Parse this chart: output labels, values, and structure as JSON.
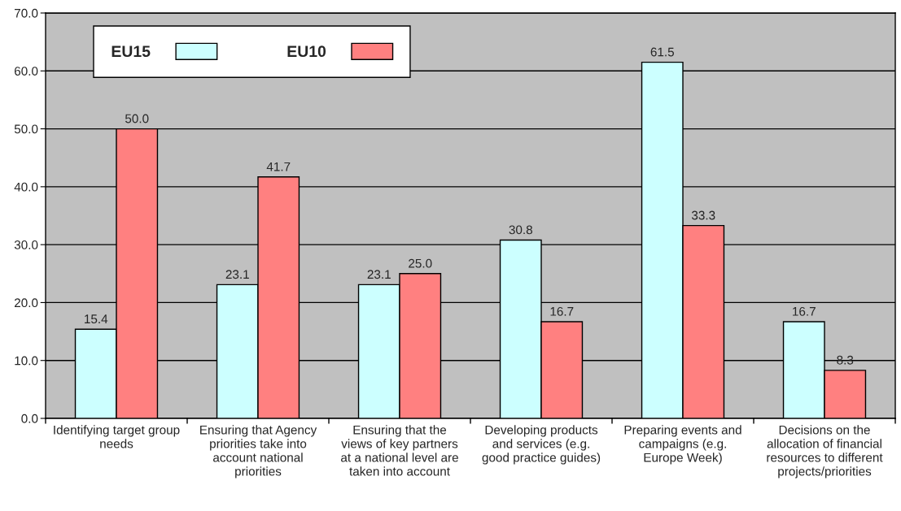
{
  "chart_data": {
    "type": "bar",
    "categories": [
      "Identifying target group needs",
      "Ensuring that Agency priorities take into account national priorities",
      "Ensuring that the views of key partners at a national level are taken into account",
      "Developing products and services (e.g. good practice guides)",
      "Preparing events and campaigns (e.g. Europe Week)",
      "Decisions on the allocation of financial resources to different projects/priorities"
    ],
    "series": [
      {
        "name": "EU15",
        "color": "#ccffff",
        "values": [
          15.4,
          23.1,
          23.1,
          30.8,
          61.5,
          16.7
        ],
        "value_labels": [
          "15.4",
          "23.1",
          "23.1",
          "30.8",
          "61.5",
          "16.7"
        ]
      },
      {
        "name": "EU10",
        "color": "#ff8080",
        "values": [
          50,
          41.7,
          25,
          16.7,
          33.3,
          8.3
        ],
        "value_labels": [
          "50.0",
          "41.7",
          "25.0",
          "16.7",
          "33.3",
          "8.3"
        ]
      }
    ],
    "ylim": [
      0,
      70
    ],
    "yticks": [
      {
        "value": 0,
        "label": "0.0"
      },
      {
        "value": 10,
        "label": "10.0"
      },
      {
        "value": 20,
        "label": "20.0"
      },
      {
        "value": 30,
        "label": "30.0"
      },
      {
        "value": 40,
        "label": "40.0"
      },
      {
        "value": 50,
        "label": "50.0"
      },
      {
        "value": 60,
        "label": "60.0"
      },
      {
        "value": 70,
        "label": "70.0"
      }
    ],
    "grid": "y",
    "legend": "top left"
  }
}
